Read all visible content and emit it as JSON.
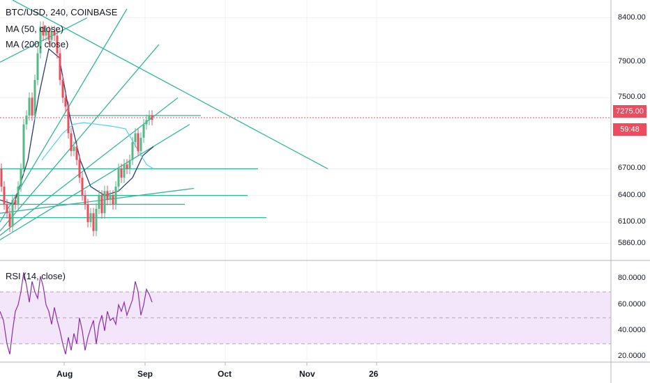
{
  "chart_data": [
    {
      "type": "candlestick",
      "title": "BTC/USD, 240, COINBASE",
      "indicators": [
        "MA (50, close)",
        "MA (200, close)"
      ],
      "ylim": [
        5700,
        8600
      ],
      "yticks": [
        {
          "value": 8400,
          "label": "8400.00"
        },
        {
          "value": 7900,
          "label": "7900.00"
        },
        {
          "value": 7500,
          "label": "7500.00"
        },
        {
          "value": 6700,
          "label": "6700.00"
        },
        {
          "value": 6400,
          "label": "6400.00"
        },
        {
          "value": 6100,
          "label": "6100.00"
        },
        {
          "value": 5860,
          "label": "5860.00"
        }
      ],
      "last_price": {
        "value": 7275,
        "label": "7275.00",
        "countdown": "59:48",
        "color": "#ef4b5f"
      },
      "xticks": [
        "Aug",
        "Sep",
        "Oct",
        "Nov",
        "26"
      ],
      "price_path": [
        [
          0,
          6700
        ],
        [
          4,
          6500
        ],
        [
          8,
          6300
        ],
        [
          12,
          6200
        ],
        [
          16,
          6050
        ],
        [
          20,
          6350
        ],
        [
          24,
          6300
        ],
        [
          28,
          6500
        ],
        [
          32,
          6700
        ],
        [
          36,
          7200
        ],
        [
          40,
          7300
        ],
        [
          44,
          7500
        ],
        [
          48,
          7300
        ],
        [
          52,
          7700
        ],
        [
          56,
          8000
        ],
        [
          60,
          8300
        ],
        [
          64,
          8200
        ],
        [
          68,
          8250
        ],
        [
          72,
          8150
        ],
        [
          76,
          8250
        ],
        [
          80,
          8200
        ],
        [
          84,
          8000
        ],
        [
          88,
          7700
        ],
        [
          92,
          7500
        ],
        [
          96,
          7400
        ],
        [
          100,
          7100
        ],
        [
          104,
          6900
        ],
        [
          108,
          6950
        ],
        [
          112,
          6800
        ],
        [
          116,
          6600
        ],
        [
          120,
          6400
        ],
        [
          124,
          6300
        ],
        [
          128,
          6100
        ],
        [
          132,
          6200
        ],
        [
          136,
          6000
        ],
        [
          140,
          6250
        ],
        [
          144,
          6400
        ],
        [
          148,
          6200
        ],
        [
          152,
          6450
        ],
        [
          156,
          6350
        ],
        [
          160,
          6400
        ],
        [
          164,
          6300
        ],
        [
          168,
          6500
        ],
        [
          172,
          6700
        ],
        [
          176,
          6600
        ],
        [
          180,
          6750
        ],
        [
          184,
          6700
        ],
        [
          188,
          6800
        ],
        [
          192,
          7000
        ],
        [
          196,
          7100
        ],
        [
          200,
          6900
        ],
        [
          204,
          7050
        ],
        [
          208,
          7200
        ],
        [
          212,
          7250
        ],
        [
          216,
          7300
        ],
        [
          220,
          7250
        ]
      ],
      "ma_lines": [
        {
          "name": "MA (50, close)",
          "color": "#2a3a6e",
          "points": [
            [
              0,
              6350
            ],
            [
              20,
              6300
            ],
            [
              40,
              6800
            ],
            [
              55,
              7500
            ],
            [
              70,
              8050
            ],
            [
              85,
              7950
            ],
            [
              100,
              7300
            ],
            [
              115,
              6800
            ],
            [
              130,
              6500
            ],
            [
              150,
              6400
            ],
            [
              170,
              6450
            ],
            [
              190,
              6600
            ],
            [
              205,
              6850
            ],
            [
              220,
              6950
            ]
          ]
        },
        {
          "name": "MA (200, close)",
          "color": "#5fd3ef",
          "points": [
            [
              60,
              6800
            ],
            [
              75,
              6950
            ],
            [
              90,
              7100
            ],
            [
              105,
              7200
            ],
            [
              120,
              7220
            ],
            [
              140,
              7200
            ],
            [
              160,
              7180
            ],
            [
              180,
              7150
            ],
            [
              195,
              6950
            ],
            [
              210,
              6750
            ],
            [
              220,
              6700
            ]
          ]
        }
      ],
      "trendlines": [
        {
          "from": [
            0,
            7900
          ],
          "to": [
            125,
            8400
          ]
        },
        {
          "from": [
            18,
            8600
          ],
          "to": [
            470,
            6700
          ]
        },
        {
          "from": [
            0,
            6100
          ],
          "to": [
            182,
            8500
          ]
        },
        {
          "from": [
            0,
            6000
          ],
          "to": [
            228,
            8100
          ]
        },
        {
          "from": [
            0,
            5950
          ],
          "to": [
            255,
            7500
          ]
        },
        {
          "from": [
            0,
            5900
          ],
          "to": [
            272,
            7200
          ]
        },
        {
          "from": [
            0,
            6200
          ],
          "to": [
            278,
            6480
          ]
        },
        {
          "from": [
            0,
            6700
          ],
          "to": [
            370,
            6700
          ]
        },
        {
          "from": [
            0,
            6400
          ],
          "to": [
            355,
            6400
          ]
        },
        {
          "from": [
            0,
            6300
          ],
          "to": [
            265,
            6300
          ]
        },
        {
          "from": [
            0,
            6150
          ],
          "to": [
            382,
            6150
          ]
        },
        {
          "from": [
            90,
            7300
          ],
          "to": [
            288,
            7300
          ]
        }
      ]
    },
    {
      "type": "line",
      "title": "RSI (14, close)",
      "ylim": [
        17,
        92
      ],
      "yticks": [
        {
          "value": 80,
          "label": "80.0000"
        },
        {
          "value": 60,
          "label": "60.0000"
        },
        {
          "value": 40,
          "label": "40.0000"
        },
        {
          "value": 20,
          "label": "20.0000"
        }
      ],
      "band": [
        30,
        70
      ],
      "band_color": "#f3e6fb",
      "series": [
        {
          "name": "RSI",
          "color": "#8a2ea8",
          "points": [
            [
              0,
              55
            ],
            [
              5,
              48
            ],
            [
              10,
              30
            ],
            [
              14,
              22
            ],
            [
              18,
              40
            ],
            [
              22,
              55
            ],
            [
              26,
              60
            ],
            [
              30,
              70
            ],
            [
              34,
              85
            ],
            [
              38,
              75
            ],
            [
              42,
              62
            ],
            [
              46,
              78
            ],
            [
              50,
              70
            ],
            [
              54,
              65
            ],
            [
              58,
              82
            ],
            [
              62,
              74
            ],
            [
              66,
              60
            ],
            [
              70,
              55
            ],
            [
              74,
              45
            ],
            [
              78,
              58
            ],
            [
              82,
              48
            ],
            [
              86,
              40
            ],
            [
              90,
              30
            ],
            [
              94,
              22
            ],
            [
              98,
              35
            ],
            [
              102,
              25
            ],
            [
              106,
              38
            ],
            [
              110,
              30
            ],
            [
              114,
              50
            ],
            [
              118,
              40
            ],
            [
              122,
              25
            ],
            [
              126,
              35
            ],
            [
              130,
              42
            ],
            [
              134,
              48
            ],
            [
              138,
              30
            ],
            [
              142,
              45
            ],
            [
              146,
              52
            ],
            [
              150,
              40
            ],
            [
              154,
              55
            ],
            [
              158,
              48
            ],
            [
              162,
              50
            ],
            [
              166,
              45
            ],
            [
              170,
              60
            ],
            [
              174,
              55
            ],
            [
              178,
              62
            ],
            [
              182,
              52
            ],
            [
              186,
              58
            ],
            [
              190,
              64
            ],
            [
              194,
              78
            ],
            [
              198,
              70
            ],
            [
              202,
              52
            ],
            [
              206,
              60
            ],
            [
              210,
              72
            ],
            [
              214,
              68
            ],
            [
              218,
              62
            ]
          ]
        }
      ]
    }
  ]
}
